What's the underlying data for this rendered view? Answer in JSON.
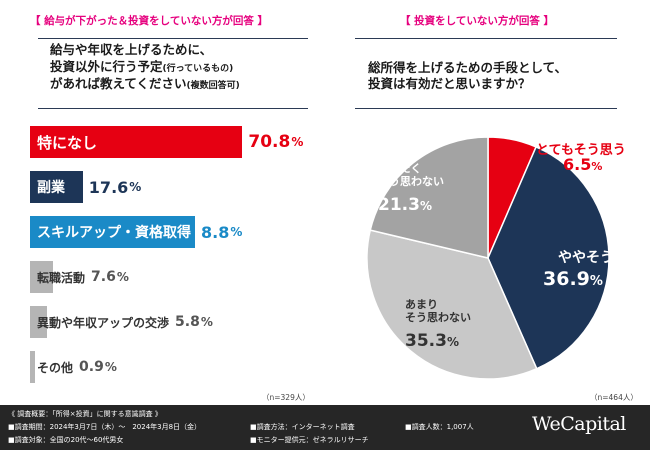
{
  "left_panel": {
    "tag": "【 給与が下がった＆投資をしていない方が回答 】",
    "question_lines": [
      "給与や年収を上げるために、",
      "投資以外に行う予定",
      "があれば教えてください"
    ],
    "question_small_1": "(行っているもの)",
    "question_small_2": "(複数回答可)",
    "sample_note": "（n=329人）"
  },
  "right_panel": {
    "tag": "【 投資をしていない方が回答 】",
    "question_lines": [
      "総所得を上げるための手段として、",
      "投資は有効だと思いますか？"
    ],
    "sample_note": "（n=464人）"
  },
  "chart_data": [
    {
      "type": "bar",
      "orientation": "horizontal",
      "categories": [
        "特になし",
        "副業",
        "スキルアップ・資格取得",
        "転職活動",
        "異動や年収アップの交渉",
        "その他"
      ],
      "values": [
        70.8,
        17.6,
        8.8,
        7.6,
        5.8,
        0.9
      ],
      "value_labels": [
        "70.8",
        "17.6",
        "8.8",
        "7.6",
        "5.8",
        "0.9"
      ],
      "unit": "%",
      "colors": [
        "#e60012",
        "#1d3557",
        "#1a8ac7",
        "#b5b5b5",
        "#b5b5b5",
        "#b5b5b5"
      ],
      "value_colors": [
        "#e60012",
        "#1d3557",
        "#1a8ac7",
        "#555555",
        "#555555",
        "#555555"
      ],
      "xlim": [
        0,
        100
      ]
    },
    {
      "type": "pie",
      "categories": [
        "とてもそう思う",
        "ややそう思う",
        "あまりそう思わない",
        "まったくそう思わない"
      ],
      "values": [
        6.5,
        36.9,
        35.3,
        21.3
      ],
      "value_labels": [
        "6.5",
        "36.9",
        "35.3",
        "21.3"
      ],
      "label_lines": [
        [
          "とてもそう思う"
        ],
        [
          "ややそう思う"
        ],
        [
          "あまり",
          "そう思わない"
        ],
        [
          "まったく",
          "そう思わない"
        ]
      ],
      "unit": "%",
      "colors": [
        "#e60012",
        "#1d3557",
        "#c8c8c8",
        "#a3a3a3"
      ],
      "label_colors": [
        "#e60012",
        "#ffffff",
        "#333333",
        "#ffffff"
      ]
    }
  ],
  "footer": {
    "survey_title": "《 調査概要：「所得×投資」に関する意識調査 》",
    "period": "■調査期間：2024年3月7日（木）〜　2024年3月8日（金）",
    "method": "■調査方法：インターネット調査",
    "count": "■調査人数：1,007人",
    "target": "■調査対象：全国の20代〜60代男女",
    "provider": "■モニター提供元：ゼネラルリサーチ",
    "logo": "WeCapital"
  }
}
